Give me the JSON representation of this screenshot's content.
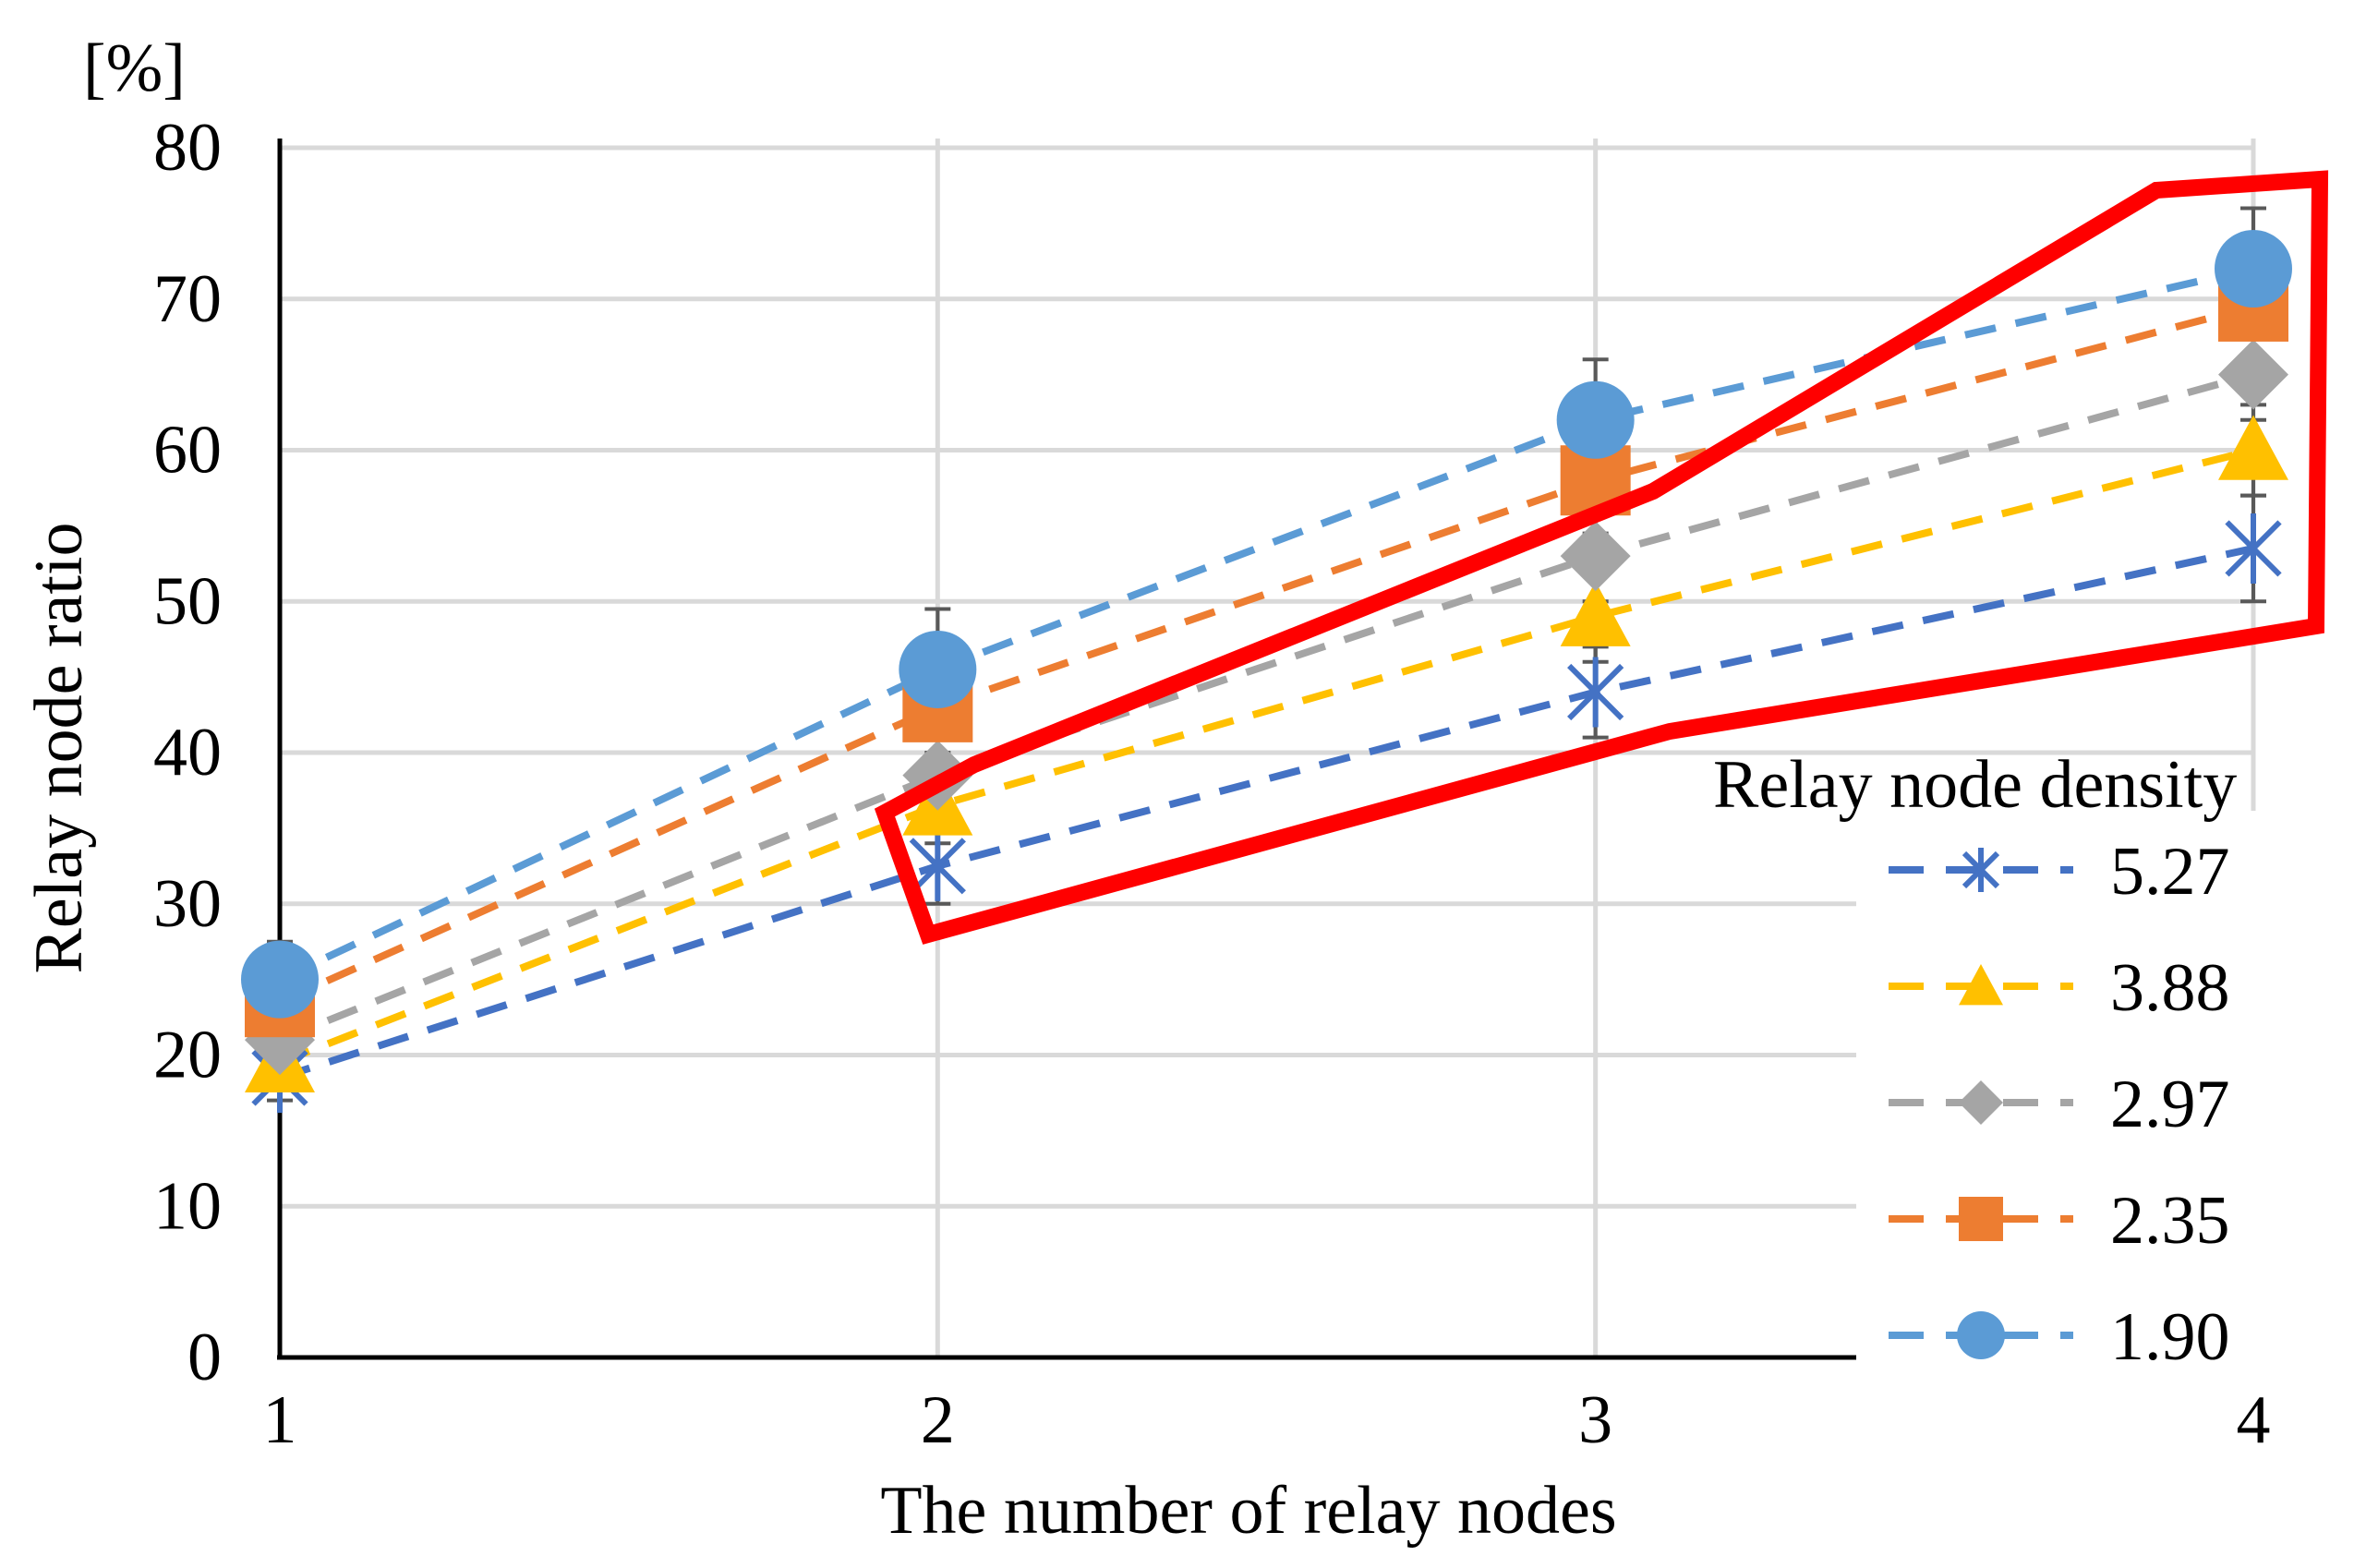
{
  "chart_data": {
    "type": "line",
    "xlabel": "The number of relay nodes",
    "ylabel": "Relay node ratio",
    "yunit": "[%]",
    "x": [
      1,
      2,
      3,
      4
    ],
    "xlim": [
      1,
      4
    ],
    "ylim": [
      0,
      80
    ],
    "yticks": [
      0,
      10,
      20,
      30,
      40,
      50,
      60,
      70,
      80
    ],
    "xticks": [
      1,
      2,
      3,
      4
    ],
    "grid": true,
    "legend": {
      "title": "Relay node density",
      "position": "right"
    },
    "highlight": {
      "shape": "red outline polygon",
      "color": "#ff0000"
    },
    "series": [
      {
        "name": "5.27",
        "color": "#4472c4",
        "marker": "asterisk",
        "values": [
          18.5,
          32.5,
          44,
          53.5
        ],
        "error": [
          1.5,
          2.5,
          3,
          3.5
        ]
      },
      {
        "name": "3.88",
        "color": "#ffc000",
        "marker": "triangle",
        "values": [
          19.5,
          36.5,
          49,
          60
        ],
        "error": [
          1.5,
          2.5,
          3,
          3
        ]
      },
      {
        "name": "2.97",
        "color": "#a5a5a5",
        "marker": "diamond",
        "values": [
          21,
          38.5,
          53,
          65
        ],
        "error": [
          1.5,
          2.5,
          3,
          3
        ]
      },
      {
        "name": "2.35",
        "color": "#ed7d31",
        "marker": "square",
        "values": [
          23.5,
          43,
          58,
          69.5
        ],
        "error": [
          1.5,
          3,
          3.5,
          3.5
        ]
      },
      {
        "name": "1.90",
        "color": "#5b9bd5",
        "marker": "circle",
        "values": [
          25,
          45.5,
          62,
          72
        ],
        "error": [
          2.5,
          4,
          4,
          4
        ]
      }
    ]
  }
}
